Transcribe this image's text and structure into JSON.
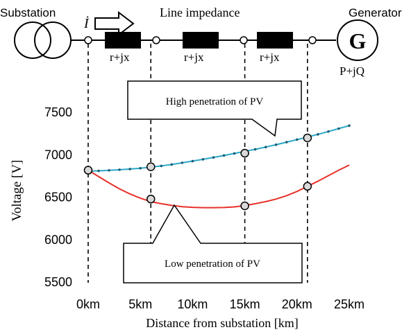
{
  "diagram": {
    "substation_label": "Substation",
    "current_symbol": "İ",
    "line_impedance_label": "Line impedance",
    "generator_label": "Generator",
    "generator_symbol": "G",
    "generator_power_label": "P+jQ",
    "impedance_labels": [
      "r+jx",
      "r+jx",
      "r+jx"
    ],
    "callout_high": "High penetration of PV",
    "callout_low": "Low penetration of PV",
    "icons": [
      "transformer-icon",
      "current-arrow-icon",
      "generator-icon"
    ]
  },
  "chart_data": {
    "type": "line",
    "xlabel": "Distance from substation [km]",
    "ylabel": "Voltage [V]",
    "x_tick_labels": [
      "0km",
      "5km",
      "10km",
      "15km",
      "20km",
      "25km"
    ],
    "y_tick_labels": [
      "7500",
      "7000",
      "6500",
      "6000",
      "5500"
    ],
    "xlim": [
      0,
      25
    ],
    "ylim": [
      5500,
      7500
    ],
    "grid": false,
    "series": [
      {
        "color": "#2aa8c9",
        "x": [
          0,
          1,
          2,
          3,
          4,
          5,
          6,
          7,
          8,
          9,
          10,
          11,
          12,
          13,
          14,
          15,
          16,
          17,
          18,
          19,
          20,
          21,
          22,
          23,
          24,
          25
        ],
        "y": [
          6800,
          6802,
          6808,
          6815,
          6823,
          6833,
          6846,
          6860,
          6877,
          6897,
          6917,
          6938,
          6960,
          6983,
          7007,
          7031,
          7056,
          7082,
          7110,
          7140,
          7170,
          7200,
          7232,
          7265,
          7300,
          7335
        ]
      },
      {
        "color": "#e8302a",
        "x": [
          0,
          1,
          2,
          3,
          4,
          5,
          6,
          7,
          8,
          9,
          10,
          11,
          12,
          13,
          14,
          15,
          16,
          17,
          18,
          19,
          20,
          21,
          22,
          23,
          24,
          25
        ],
        "y": [
          6810,
          6735,
          6660,
          6590,
          6530,
          6480,
          6440,
          6415,
          6395,
          6380,
          6372,
          6368,
          6368,
          6370,
          6378,
          6393,
          6415,
          6440,
          6470,
          6510,
          6560,
          6620,
          6680,
          6745,
          6810,
          6870
        ]
      }
    ],
    "markers": [
      {
        "x": 0,
        "y": 6810
      },
      {
        "x": 6,
        "y": 6850
      },
      {
        "x": 15,
        "y": 7010
      },
      {
        "x": 21,
        "y": 7190
      },
      {
        "x": 6,
        "y": 6470
      },
      {
        "x": 15,
        "y": 6390
      },
      {
        "x": 21,
        "y": 6620
      }
    ],
    "dashed_x": [
      0,
      6,
      15,
      21
    ]
  }
}
